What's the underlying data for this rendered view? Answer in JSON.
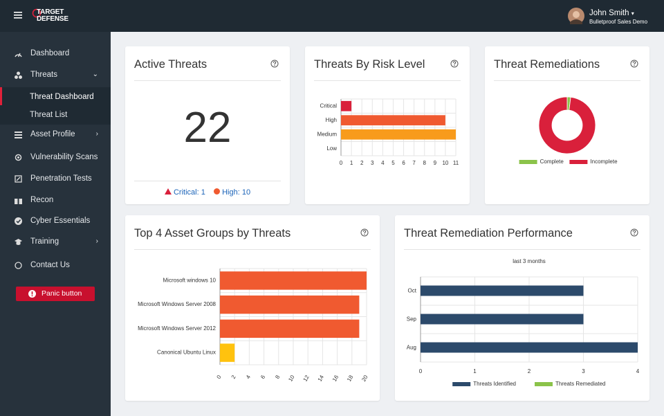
{
  "header": {
    "brand": [
      "TARGET",
      "DEFENSE"
    ],
    "user": {
      "name": "John Smith",
      "org": "Bulletproof Sales Demo"
    }
  },
  "sidebar": {
    "items": [
      "Dashboard",
      "Threats",
      "Threat Dashboard",
      "Threat List",
      "Asset Profile",
      "Vulnerability Scans",
      "Penetration Tests",
      "Recon",
      "Cyber Essentials",
      "Training",
      "Contact Us"
    ],
    "button": "Panic button"
  },
  "cards": {
    "active": {
      "title": "Active Threats",
      "value": 22,
      "critical": "Critical: 1",
      "high": "High: 10"
    },
    "risk": {
      "title": "Threats By Risk Level",
      "chart": {
        "type": "hbar",
        "categories": [
          "Critical",
          "High",
          "Medium",
          "Low"
        ],
        "values": [
          1,
          10,
          11,
          0
        ],
        "colors": [
          "#d9203b",
          "#f05a30",
          "#f89b1c",
          "#f89b1c"
        ],
        "xlim": [
          0,
          11
        ],
        "xticks": [
          0,
          1,
          2,
          3,
          4,
          5,
          6,
          7,
          8,
          9,
          10,
          11
        ],
        "grid": true
      }
    },
    "remed": {
      "title": "Threat Remediations",
      "chart": {
        "type": "donut",
        "categories": [
          "Complete",
          "Incomplete"
        ],
        "values": [
          2,
          98
        ],
        "colors": [
          "#8bc34a",
          "#d9203b"
        ]
      }
    },
    "assets": {
      "title": "Top 4 Asset Groups by Threats",
      "chart": {
        "type": "hbar",
        "categories": [
          "Microsoft windows 10",
          "Microsoft Windows Server 2008",
          "Microsoft Windows Server 2012",
          "Canonical Ubuntu Linux"
        ],
        "values": [
          20,
          19,
          19,
          2
        ],
        "colors": [
          "#f05a30",
          "#f05a30",
          "#f05a30",
          "#ffc20e"
        ],
        "xlim": [
          0,
          20
        ],
        "xticks": [
          0,
          2,
          4,
          6,
          8,
          10,
          12,
          14,
          16,
          18,
          20
        ],
        "grid": true
      }
    },
    "perf": {
      "title": "Threat Remediation Performance",
      "chart": {
        "type": "hbar",
        "subtitle": "last 3 months",
        "categories": [
          "Oct",
          "Sep",
          "Aug"
        ],
        "series": [
          {
            "name": "Threats Identified",
            "color": "#2c4a6b",
            "values": [
              3,
              3,
              4
            ]
          },
          {
            "name": "Threats Remediated",
            "color": "#8bc34a",
            "values": [
              0,
              0,
              0
            ]
          }
        ],
        "xlim": [
          0,
          4
        ],
        "xticks": [
          0,
          1,
          2,
          3,
          4
        ],
        "grid": true
      }
    }
  }
}
